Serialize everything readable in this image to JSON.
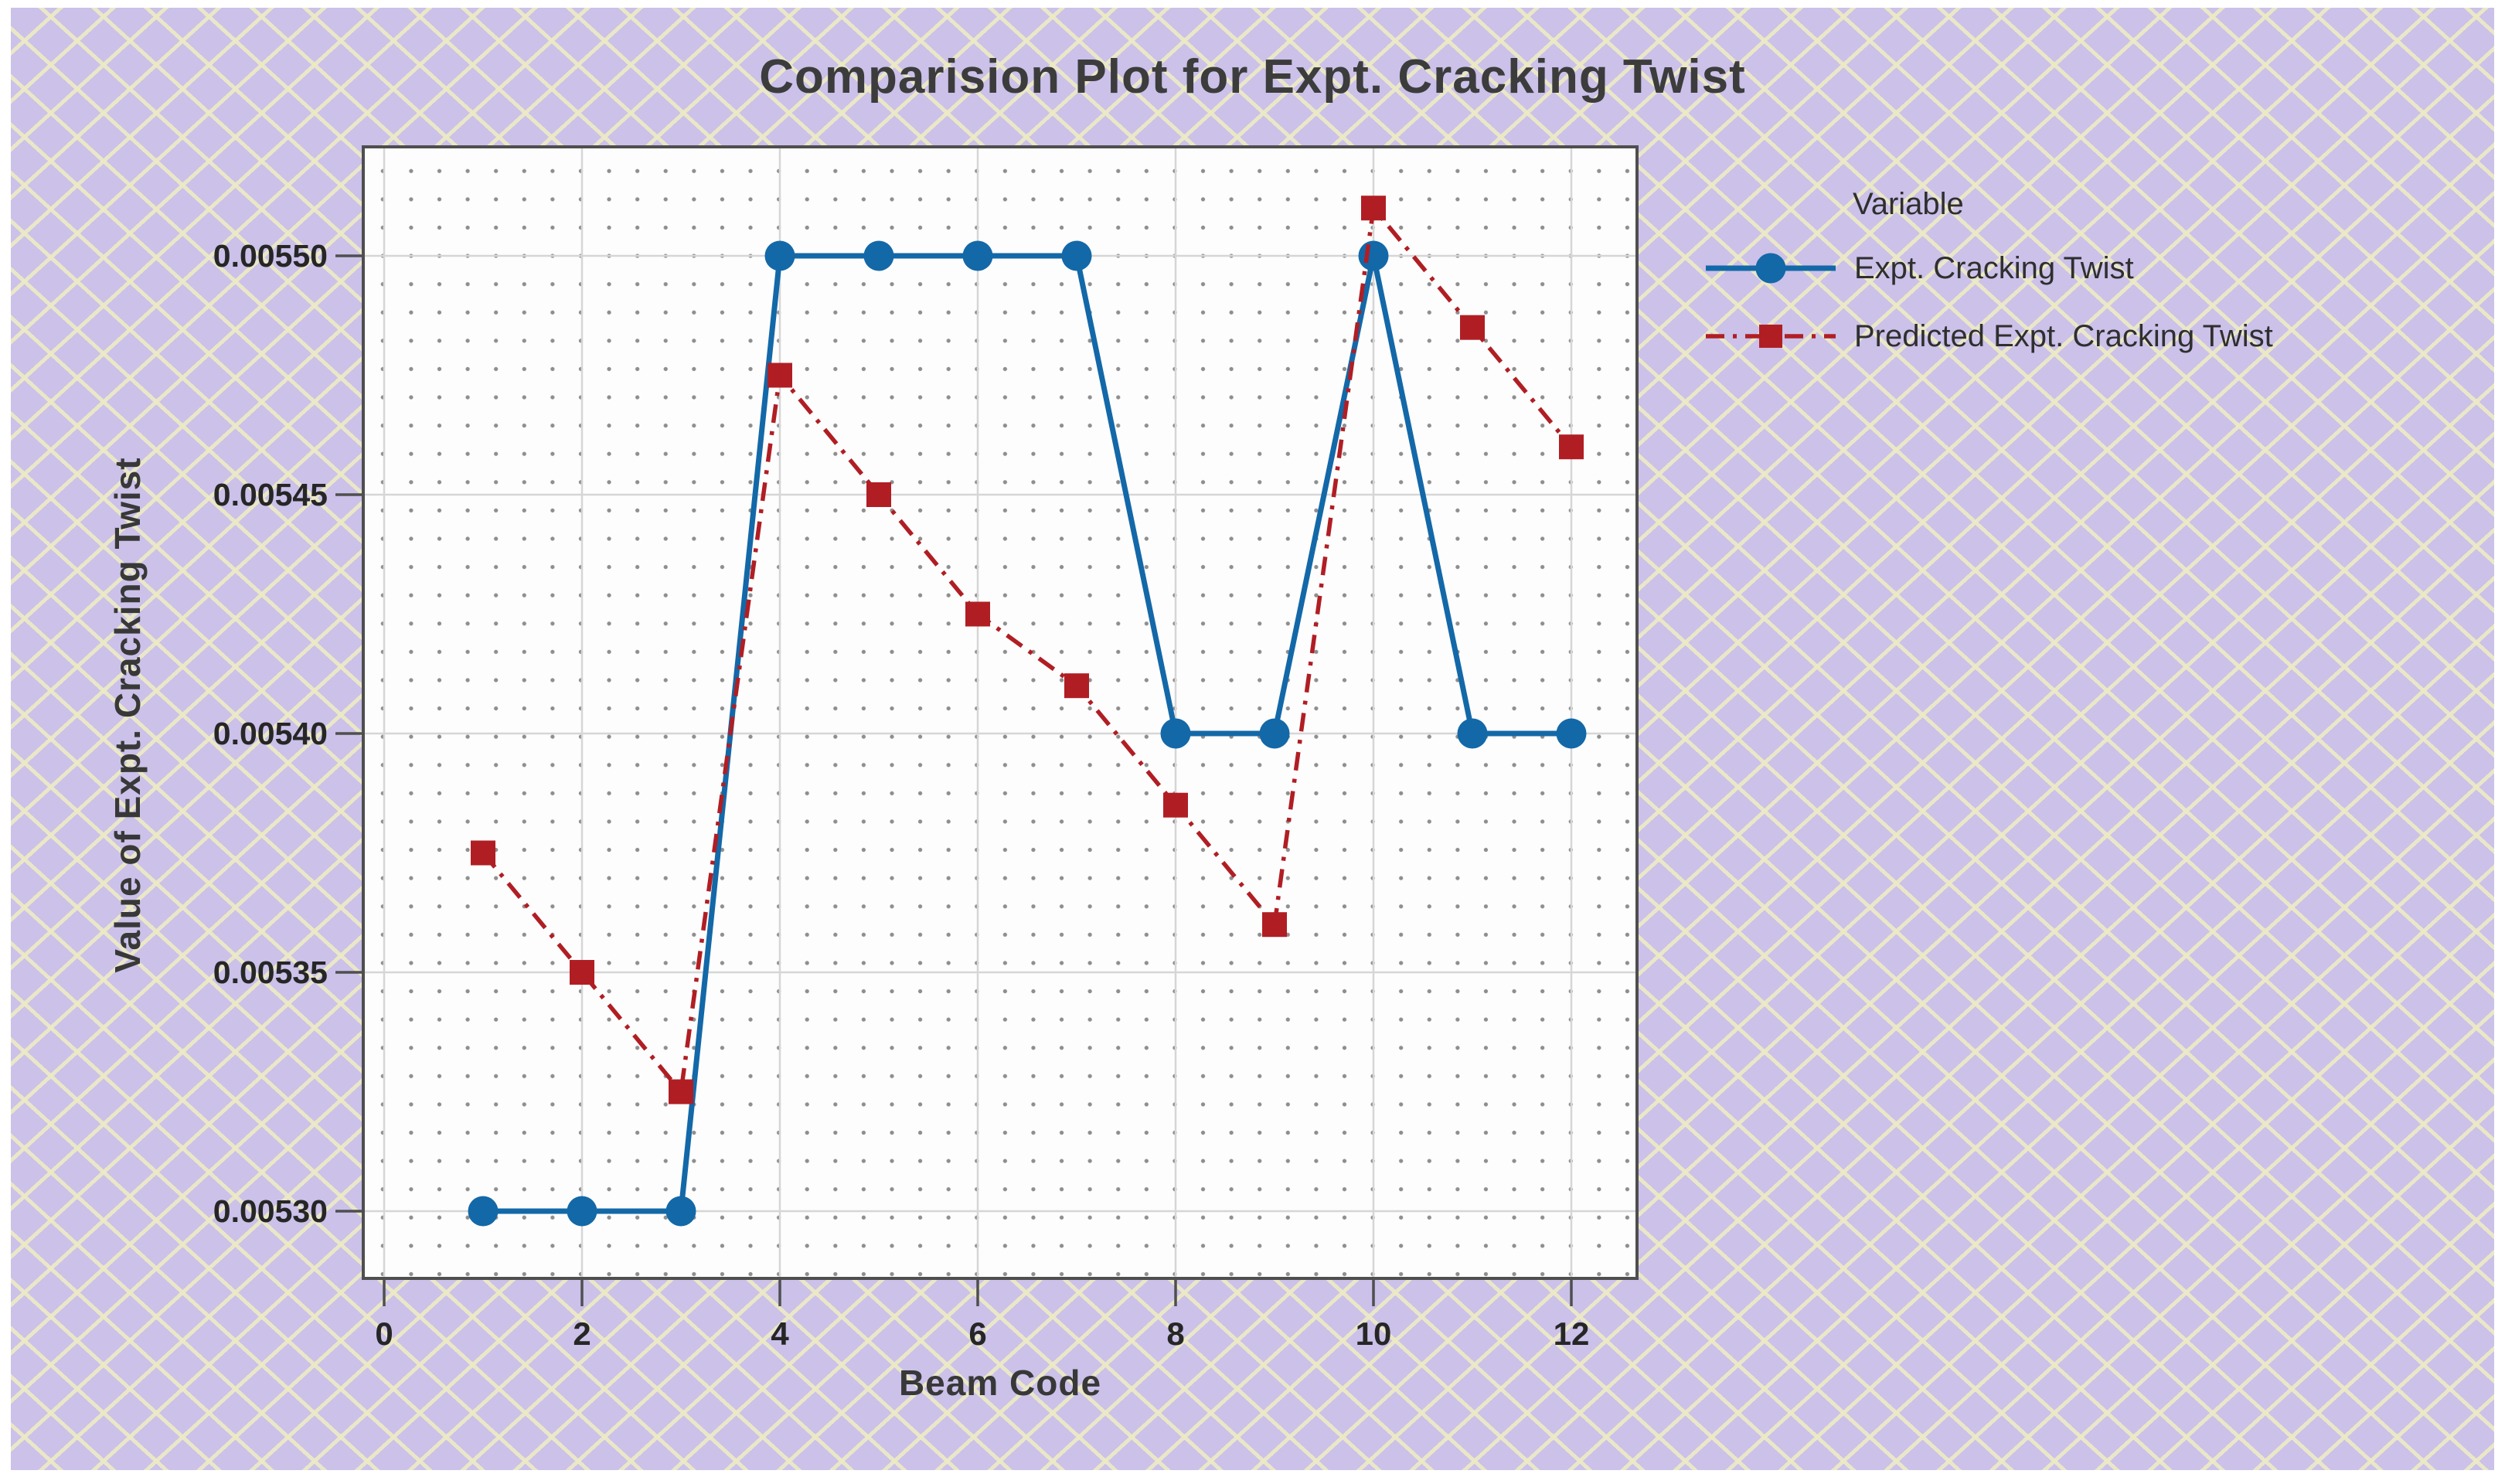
{
  "window": {
    "frame_color": "#ffffff",
    "panel_color": "#cbc1e9",
    "hatch_line_color": "#ece9c6"
  },
  "colors": {
    "plot_background": "#fdfdfd",
    "minor_dot_grid": "#8e8e8e",
    "major_gridline": "#d6d6d6",
    "plot_frame": "#4f4f4f",
    "tick": "#4f4f4f",
    "title_text": "#3c3c3c",
    "tick_text": "#262626",
    "legend_text": "#2f2f2f"
  },
  "chart_data": {
    "type": "line",
    "title": "Comparision Plot for Expt. Cracking Twist",
    "xlabel": "Beam Code",
    "ylabel": "Value of Expt. Cracking Twist",
    "legend_title": "Variable",
    "legend_position": "right",
    "grid": "dotted minor grid with solid light-gray major gridlines",
    "x": [
      1,
      2,
      3,
      4,
      5,
      6,
      7,
      8,
      9,
      10,
      11,
      12
    ],
    "series": [
      {
        "name": "Expt. Cracking Twist",
        "color": "#1368a8",
        "marker": "circle",
        "line_style": "solid",
        "values": [
          0.0053,
          0.0053,
          0.0053,
          0.0055,
          0.0055,
          0.0055,
          0.0055,
          0.0054,
          0.0054,
          0.0055,
          0.0054,
          0.0054
        ]
      },
      {
        "name": "Predicted Expt. Cracking Twist",
        "color": "#b01e24",
        "marker": "square",
        "line_style": "dash-dot",
        "values": [
          0.005375,
          0.00535,
          0.005325,
          0.005475,
          0.00545,
          0.005425,
          0.00541,
          0.005385,
          0.00536,
          0.00551,
          0.005485,
          0.00546
        ]
      }
    ],
    "xticks": [
      0,
      2,
      4,
      6,
      8,
      10,
      12
    ],
    "yticks": [
      "0.00550",
      "0.00545",
      "0.00540",
      "0.00535",
      "0.00530"
    ],
    "ytick_values": [
      0.0055,
      0.00545,
      0.0054,
      0.00535,
      0.0053
    ],
    "xlim": [
      -0.21,
      12.66
    ],
    "ylim": [
      0.005286,
      0.005523
    ]
  }
}
